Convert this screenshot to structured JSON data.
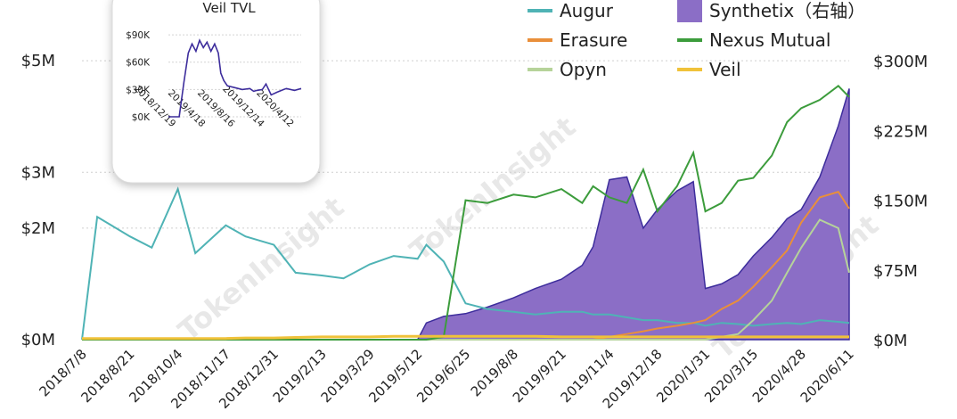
{
  "chart_data": [
    {
      "type": "line",
      "left_axis": {
        "ticks": [
          "$0M",
          "$2M",
          "$3M",
          "$5M"
        ],
        "tick_values": [
          0,
          2,
          3,
          5
        ],
        "range": [
          0,
          5.45
        ]
      },
      "right_axis": {
        "ticks": [
          "$0M",
          "$75M",
          "$150M",
          "$225M",
          "$300M"
        ],
        "tick_values": [
          0,
          75,
          150,
          225,
          300
        ],
        "range": [
          0,
          327
        ]
      },
      "x_ticks": [
        "2018/7/8",
        "2018/8/21",
        "2018/10/4",
        "2018/11/17",
        "2018/12/31",
        "2019/2/13",
        "2019/3/29",
        "2019/5/12",
        "2019/6/25",
        "2019/8/8",
        "2019/9/21",
        "2019/11/4",
        "2019/12/18",
        "2020/1/31",
        "2020/3/15",
        "2020/4/28",
        "2020/6/11"
      ],
      "grid": "horizontal dotted",
      "legend_placement": "top-right",
      "x": [
        "2018/7/8",
        "2018/7/22",
        "2018/8/21",
        "2018/9/10",
        "2018/10/4",
        "2018/10/20",
        "2018/11/17",
        "2018/12/5",
        "2018/12/31",
        "2019/1/20",
        "2019/2/13",
        "2019/3/5",
        "2019/3/29",
        "2019/4/20",
        "2019/5/12",
        "2019/5/20",
        "2019/6/5",
        "2019/6/25",
        "2019/7/15",
        "2019/8/8",
        "2019/8/28",
        "2019/9/21",
        "2019/10/10",
        "2019/10/20",
        "2019/11/4",
        "2019/11/20",
        "2019/12/5",
        "2019/12/18",
        "2020/1/5",
        "2020/1/20",
        "2020/1/31",
        "2020/2/15",
        "2020/3/1",
        "2020/3/15",
        "2020/4/1",
        "2020/4/15",
        "2020/4/28",
        "2020/5/15",
        "2020/6/1",
        "2020/6/11"
      ],
      "series": [
        {
          "name": "Augur",
          "color": "#4fb3b5",
          "axis": "left",
          "values": [
            0.0,
            2.2,
            1.85,
            1.65,
            2.7,
            1.55,
            2.05,
            1.85,
            1.7,
            1.2,
            1.15,
            1.1,
            1.35,
            1.5,
            1.45,
            1.7,
            1.4,
            0.65,
            0.55,
            0.5,
            0.45,
            0.5,
            0.5,
            0.45,
            0.45,
            0.4,
            0.35,
            0.35,
            0.3,
            0.3,
            0.25,
            0.3,
            0.28,
            0.25,
            0.28,
            0.3,
            0.28,
            0.35,
            0.32,
            0.3
          ]
        },
        {
          "name": "Erasure",
          "color": "#e98f3a",
          "axis": "left",
          "values": [
            0,
            0,
            0,
            0,
            0,
            0,
            0,
            0,
            0,
            0,
            0,
            0,
            0,
            0,
            0,
            0,
            0,
            0,
            0,
            0,
            0,
            0,
            0,
            0,
            0.05,
            0.1,
            0.15,
            0.2,
            0.25,
            0.3,
            0.35,
            0.55,
            0.7,
            0.95,
            1.3,
            1.6,
            2.1,
            2.55,
            2.65,
            2.35
          ]
        },
        {
          "name": "Opyn",
          "color": "#b6d39a",
          "axis": "left",
          "values": [
            0,
            0,
            0,
            0,
            0,
            0,
            0,
            0,
            0,
            0,
            0,
            0,
            0,
            0,
            0,
            0,
            0,
            0,
            0,
            0,
            0,
            0,
            0,
            0,
            0,
            0,
            0,
            0,
            0,
            0,
            0,
            0.05,
            0.1,
            0.35,
            0.7,
            1.2,
            1.65,
            2.15,
            2.0,
            1.2
          ]
        },
        {
          "name": "Nexus Mutual",
          "color": "#3c9c3c",
          "axis": "left",
          "values": [
            0,
            0,
            0,
            0,
            0,
            0,
            0,
            0,
            0,
            0,
            0,
            0,
            0,
            0,
            0,
            0,
            0.05,
            2.5,
            2.45,
            2.6,
            2.55,
            2.7,
            2.45,
            2.75,
            2.55,
            2.45,
            3.05,
            2.3,
            2.75,
            3.35,
            2.3,
            2.45,
            2.85,
            2.9,
            3.3,
            3.9,
            4.15,
            4.3,
            4.55,
            4.35
          ]
        },
        {
          "name": "Veil",
          "color": "#f0c23a",
          "axis": "left",
          "values": [
            0.02,
            0.02,
            0.02,
            0.02,
            0.02,
            0.02,
            0.02,
            0.03,
            0.03,
            0.04,
            0.05,
            0.05,
            0.05,
            0.06,
            0.06,
            0.06,
            0.06,
            0.06,
            0.06,
            0.06,
            0.06,
            0.05,
            0.05,
            0.05,
            0.05,
            0.05,
            0.05,
            0.05,
            0.05,
            0.05,
            0.05,
            0.05,
            0.05,
            0.05,
            0.05,
            0.05,
            0.05,
            0.05,
            0.05,
            0.05
          ]
        },
        {
          "name": "Synthetix（右轴）",
          "color": "#8b6ec6",
          "axis": "right",
          "type": "area",
          "values": [
            0,
            0,
            0,
            0,
            0,
            0,
            0,
            0,
            0,
            0,
            0,
            0,
            0,
            0,
            0,
            18,
            25,
            28,
            35,
            45,
            55,
            65,
            80,
            100,
            172,
            175,
            120,
            140,
            160,
            170,
            55,
            60,
            70,
            90,
            110,
            130,
            140,
            175,
            230,
            270
          ]
        }
      ]
    },
    {
      "type": "line",
      "title": "Veil TVL",
      "y_ticks": [
        "$0K",
        "$30K",
        "$60K",
        "$90K"
      ],
      "y_tick_values": [
        0,
        30,
        60,
        90
      ],
      "y_range": [
        0,
        95
      ],
      "x_ticks": [
        "2018/12/19",
        "2019/4/18",
        "2019/8/16",
        "2019/12/14",
        "2020/4/12"
      ],
      "series": [
        {
          "name": "Veil",
          "color": "#3d2d9c",
          "x": [
            "2018/12/19",
            "2019/2/1",
            "2019/2/20",
            "2019/3/10",
            "2019/3/25",
            "2019/4/10",
            "2019/4/25",
            "2019/5/10",
            "2019/5/25",
            "2019/6/10",
            "2019/6/25",
            "2019/7/10",
            "2019/7/20",
            "2019/8/1",
            "2019/8/16",
            "2019/9/15",
            "2019/10/15",
            "2019/11/15",
            "2019/12/1",
            "2019/12/14",
            "2020/1/5",
            "2020/1/20",
            "2020/2/10",
            "2020/3/5",
            "2020/4/1",
            "2020/4/12",
            "2020/5/15",
            "2020/6/11"
          ],
          "values": [
            0,
            0,
            38,
            70,
            80,
            72,
            84,
            76,
            82,
            72,
            80,
            70,
            48,
            40,
            34,
            32,
            30,
            31,
            28,
            29,
            30,
            36,
            24,
            27,
            30,
            31,
            29,
            31
          ]
        }
      ]
    }
  ],
  "legend": [
    {
      "name": "Augur",
      "color": "#4fb3b5",
      "kind": "line"
    },
    {
      "name": "Synthetix（右轴）",
      "color": "#8b6ec6",
      "kind": "area"
    },
    {
      "name": "Erasure",
      "color": "#e98f3a",
      "kind": "line"
    },
    {
      "name": "Nexus Mutual",
      "color": "#3c9c3c",
      "kind": "line"
    },
    {
      "name": "Opyn",
      "color": "#b6d39a",
      "kind": "line"
    },
    {
      "name": "Veil",
      "color": "#f0c23a",
      "kind": "line"
    }
  ],
  "watermark": "TokenInsight"
}
